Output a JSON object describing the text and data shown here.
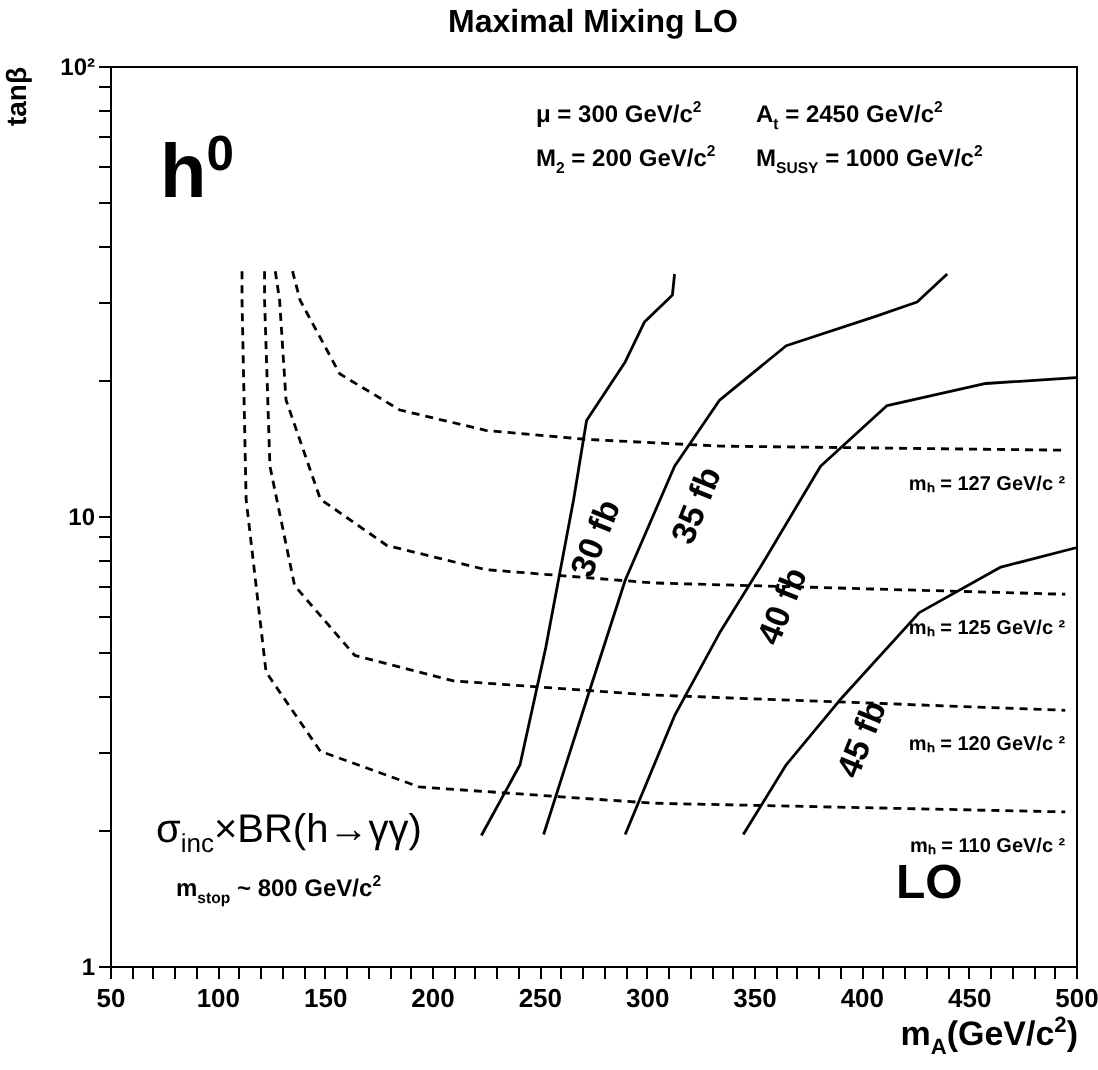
{
  "chart_data": {
    "type": "line",
    "title": "Maximal Mixing  LO",
    "xlabel": "m$_{A}$(GeV/c$^{2}$)",
    "ylabel": "tanβ",
    "annotations": [
      "h$^{0}$",
      "μ = 300 GeV/c$^{2}$",
      "A$_{t}$ = 2450 GeV/c$^{2}$",
      "M$_{2}$ = 200 GeV/c$^{2}$",
      "M$_{SUSY}$ = 1000 GeV/c$^{2}$",
      "σ$_{inc}$×BR(h→γγ)",
      "m$_{stop}$ ~ 800 GeV/c$^{2}$",
      "LO"
    ],
    "log": "y",
    "grid": false,
    "xlim": [
      50,
      500
    ],
    "ylim": [
      1,
      100
    ],
    "xticks": [
      50,
      {
        "value": 60,
        "label": null
      },
      {
        "value": 70,
        "label": null
      },
      {
        "value": 80,
        "label": null
      },
      {
        "value": 90,
        "label": null
      },
      100,
      {
        "value": 110,
        "label": null
      },
      {
        "value": 120,
        "label": null
      },
      {
        "value": 130,
        "label": null
      },
      {
        "value": 140,
        "label": null
      },
      150,
      {
        "value": 160,
        "label": null
      },
      {
        "value": 170,
        "label": null
      },
      {
        "value": 180,
        "label": null
      },
      {
        "value": 190,
        "label": null
      },
      200,
      {
        "value": 210,
        "label": null
      },
      {
        "value": 220,
        "label": null
      },
      {
        "value": 230,
        "label": null
      },
      {
        "value": 240,
        "label": null
      },
      250,
      {
        "value": 260,
        "label": null
      },
      {
        "value": 270,
        "label": null
      },
      {
        "value": 280,
        "label": null
      },
      {
        "value": 290,
        "label": null
      },
      300,
      {
        "value": 310,
        "label": null
      },
      {
        "value": 320,
        "label": null
      },
      {
        "value": 330,
        "label": null
      },
      {
        "value": 340,
        "label": null
      },
      350,
      {
        "value": 360,
        "label": null
      },
      {
        "value": 370,
        "label": null
      },
      {
        "value": 380,
        "label": null
      },
      {
        "value": 390,
        "label": null
      },
      400,
      {
        "value": 410,
        "label": null
      },
      {
        "value": 420,
        "label": null
      },
      {
        "value": 430,
        "label": null
      },
      {
        "value": 440,
        "label": null
      },
      450,
      {
        "value": 460,
        "label": null
      },
      {
        "value": 470,
        "label": null
      },
      {
        "value": 480,
        "label": null
      },
      {
        "value": 490,
        "label": null
      },
      500
    ],
    "yticks": [
      1,
      {
        "value": 2,
        "label": null
      },
      {
        "value": 3,
        "label": null
      },
      {
        "value": 4,
        "label": null
      },
      {
        "value": 5,
        "label": null
      },
      {
        "value": 6,
        "label": null
      },
      {
        "value": 7,
        "label": null
      },
      {
        "value": 8,
        "label": null
      },
      {
        "value": 9,
        "label": null
      },
      10,
      {
        "value": 20,
        "label": null
      },
      {
        "value": 30,
        "label": null
      },
      {
        "value": 40,
        "label": null
      },
      {
        "value": 50,
        "label": null
      },
      {
        "value": 60,
        "label": null
      },
      {
        "value": 70,
        "label": null
      },
      {
        "value": 80,
        "label": null
      },
      {
        "value": 90,
        "label": null
      },
      {
        "value": 100,
        "label": "10²"
      }
    ],
    "series": [
      {
        "name": "30 fb",
        "color": "#000000",
        "line_style": "solid",
        "x": [
          223,
          241,
          253,
          266,
          272,
          290,
          299,
          312,
          313
        ],
        "values": [
          1.95,
          2.8,
          5.1,
          10.9,
          16.3,
          22,
          27,
          31,
          34.5
        ]
      },
      {
        "name": "35 fb",
        "color": "#000000",
        "line_style": "solid",
        "x": [
          252,
          272,
          290,
          313,
          334,
          365,
          407,
          426,
          440
        ],
        "values": [
          1.96,
          3.9,
          7.2,
          12.9,
          18.1,
          23.9,
          27.8,
          29.9,
          34.5
        ]
      },
      {
        "name": "40 fb",
        "color": "#000000",
        "line_style": "solid",
        "x": [
          290,
          313,
          334,
          353,
          381,
          412,
          458,
          500
        ],
        "values": [
          1.96,
          3.6,
          5.5,
          7.7,
          12.9,
          17.6,
          19.7,
          20.3
        ]
      },
      {
        "name": "45 fb",
        "color": "#000000",
        "line_style": "solid",
        "x": [
          345,
          365,
          390,
          427,
          465,
          500
        ],
        "values": [
          1.96,
          2.8,
          3.9,
          6.1,
          7.7,
          8.5
        ]
      },
      {
        "name": "mₕ = 127 GeV/c ²",
        "color": "#000000",
        "line_style": "dashed",
        "x": [
          135,
          138.5,
          157,
          185,
          225,
          272,
          334,
          495
        ],
        "values": [
          35,
          30.2,
          20.7,
          17.2,
          15.5,
          14.8,
          14.3,
          14
        ]
      },
      {
        "name": "mₕ = 125 GeV/c ²",
        "color": "#000000",
        "line_style": "dashed",
        "x": [
          127,
          129,
          132,
          148,
          179,
          225,
          303,
          495
        ],
        "values": [
          35,
          30.2,
          18.1,
          10.9,
          8.6,
          7.6,
          7.1,
          6.7
        ]
      },
      {
        "name": "mₕ = 120 GeV/c ²",
        "color": "#000000",
        "line_style": "dashed",
        "x": [
          122,
          122,
          124.5,
          136,
          164,
          210,
          303,
          495
        ],
        "values": [
          35,
          30.2,
          12.9,
          7,
          4.9,
          4.3,
          4,
          3.7
        ]
      },
      {
        "name": "mₕ = 110 GeV/c ²",
        "color": "#000000",
        "line_style": "dashed",
        "x": [
          111.5,
          111.5,
          113.4,
          122.7,
          148,
          194,
          303,
          495
        ],
        "values": [
          35,
          30.2,
          10.9,
          4.5,
          3,
          2.5,
          2.3,
          2.2
        ]
      }
    ]
  }
}
